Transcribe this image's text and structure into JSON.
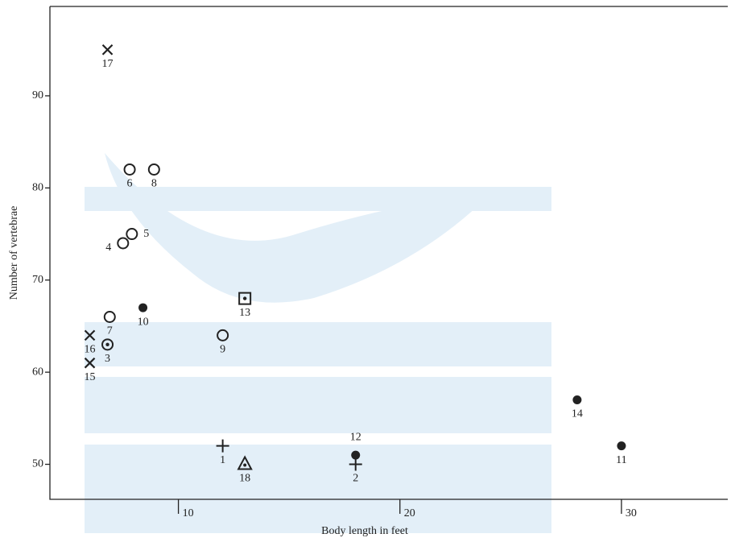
{
  "chart_data": {
    "type": "scatter",
    "x_label": "Body length in feet",
    "y_label": "Number of vertebrae",
    "xlim": [
      4.2,
      34.8
    ],
    "ylim": [
      46.2,
      99.7
    ],
    "xticks": [
      10,
      20,
      30
    ],
    "yticks": [
      50,
      60,
      70,
      80,
      90
    ],
    "color": "#222222",
    "series": [
      {
        "marker": "plus",
        "x": [
          12,
          18
        ],
        "y": [
          52,
          50
        ],
        "labels": [
          "1",
          "2"
        ]
      },
      {
        "marker": "dotted-circle",
        "x": [
          6.8
        ],
        "y": [
          63
        ],
        "labels": [
          "3"
        ]
      },
      {
        "marker": "open-circle",
        "x": [
          7.5,
          7.9,
          7.8,
          6.9,
          8.9,
          12
        ],
        "y": [
          74,
          75,
          82,
          66,
          82,
          64
        ],
        "labels": [
          "4",
          "5",
          "6",
          "7",
          "8",
          "9"
        ]
      },
      {
        "marker": "filled-circle",
        "x": [
          8.4,
          30,
          18,
          28
        ],
        "y": [
          67,
          52,
          51,
          57
        ],
        "labels": [
          "10",
          "11",
          "12",
          "14"
        ]
      },
      {
        "marker": "dotted-square",
        "x": [
          13
        ],
        "y": [
          68
        ],
        "labels": [
          "13"
        ]
      },
      {
        "marker": "cross",
        "x": [
          6,
          6,
          6.8
        ],
        "y": [
          61,
          64,
          95
        ],
        "labels": [
          "15",
          "16",
          "17"
        ]
      },
      {
        "marker": "dotted-triangle",
        "x": [
          13
        ],
        "y": [
          50
        ],
        "labels": [
          "18"
        ]
      }
    ]
  }
}
